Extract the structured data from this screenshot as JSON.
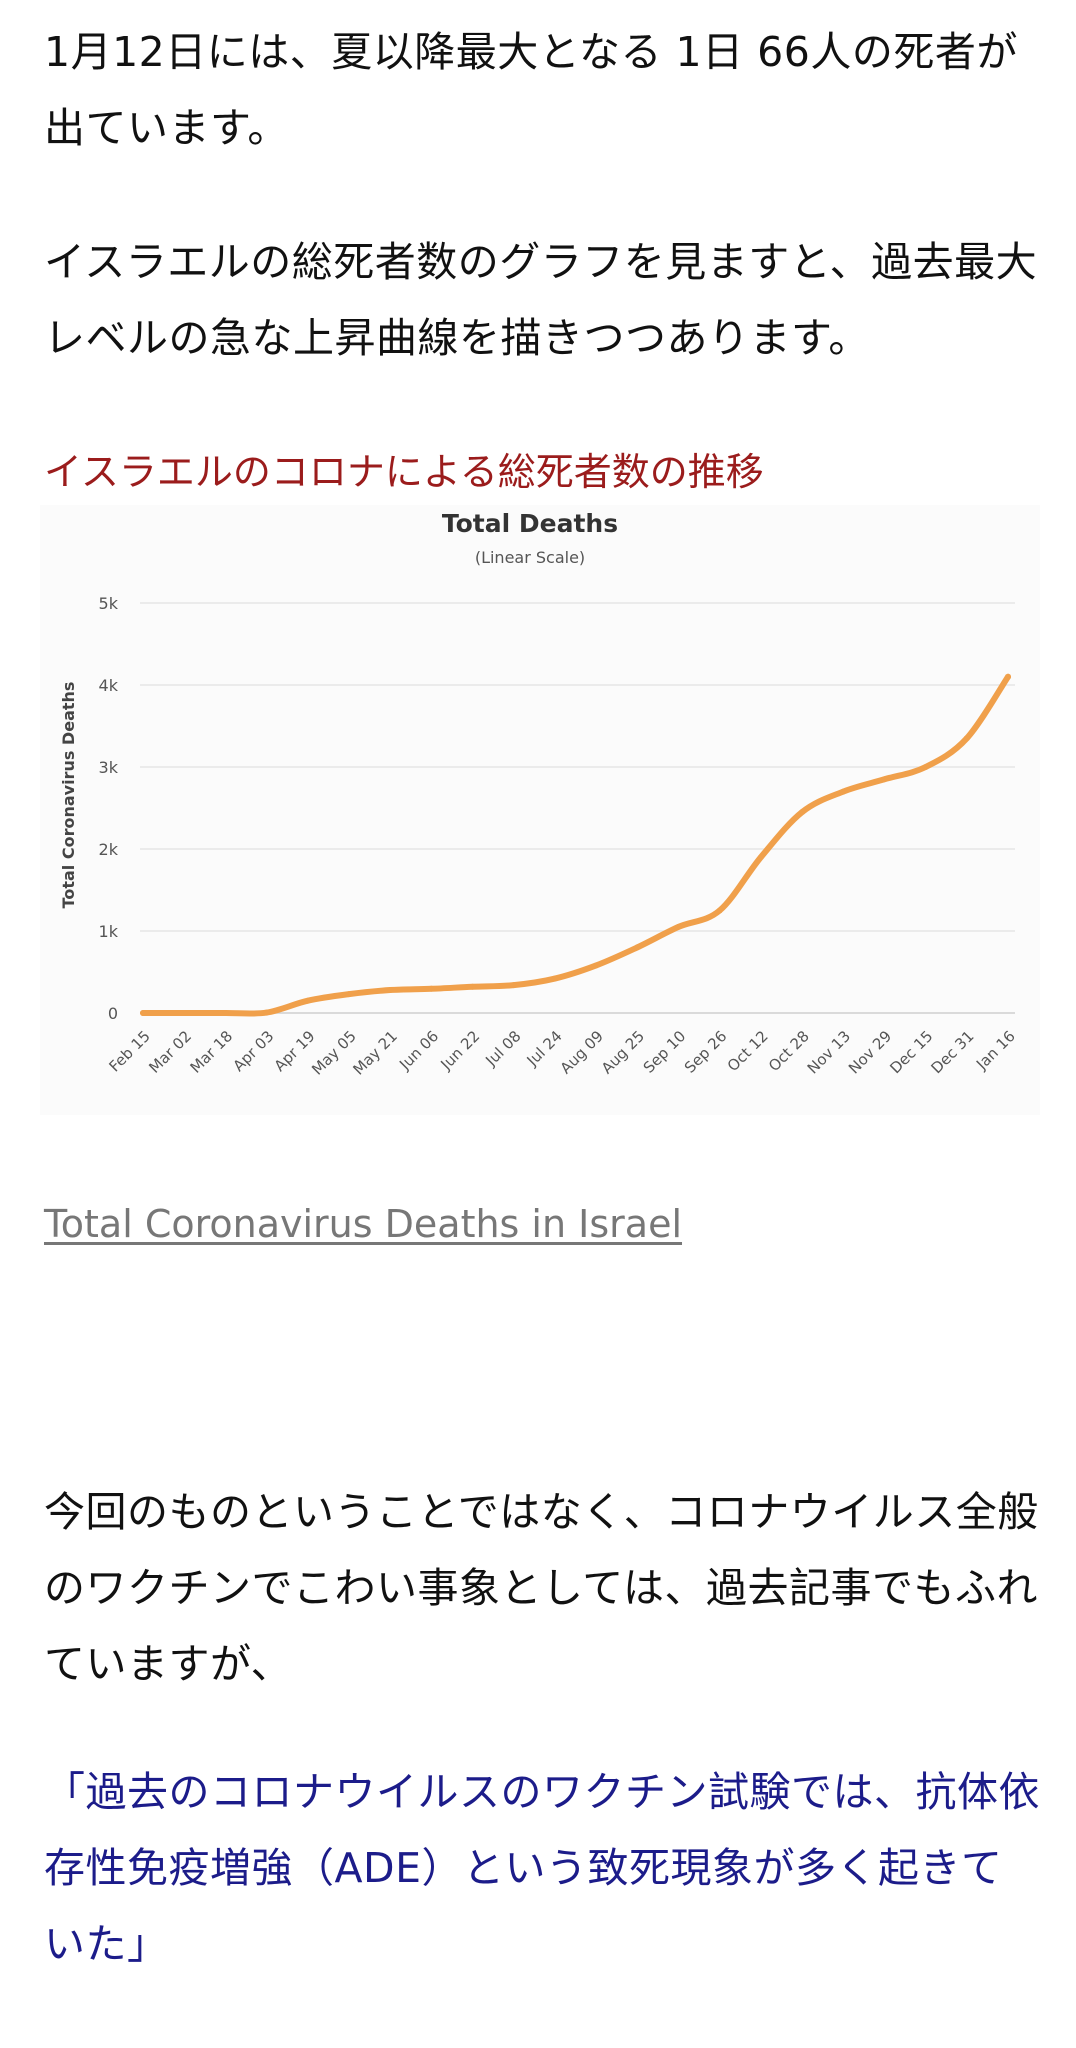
{
  "article": {
    "para1": "1月12日には、夏以降最大となる 1日 66人の死者が出ています。",
    "para2": "イスラエルの総死者数のグラフを見ますと、過去最大レベルの急な上昇曲線を描きつつあります。",
    "chart_heading": "イスラエルのコロナによる総死者数の推移",
    "source_link": "Total Coronavirus Deaths in Israel",
    "para3": "今回のものということではなく、コロナウイルス全般のワクチンでこわい事象としては、過去記事でもふれていますが、",
    "quote": "「過去のコロナウイルスのワクチン試験では、抗体依存性免疫増強（ADE）という致死現象が多く起きていた」"
  },
  "colors": {
    "text": "#111111",
    "heading": "#9b1c1c",
    "link": "#777777",
    "quote": "#1c1c8a",
    "line": "#f0a04b",
    "grid": "#e6e6e6"
  },
  "chart_data": {
    "type": "line",
    "title": "Total Deaths",
    "subtitle": "(Linear Scale)",
    "ylabel": "Total Coronavirus Deaths",
    "xlabel": "",
    "ylim": [
      0,
      5000
    ],
    "yticks": [
      0,
      1000,
      2000,
      3000,
      4000,
      5000
    ],
    "ytick_labels": [
      "0",
      "1k",
      "2k",
      "3k",
      "4k",
      "5k"
    ],
    "xtick_labels": [
      "Feb 15",
      "Mar 02",
      "Mar 18",
      "Apr 03",
      "Apr 19",
      "May 05",
      "May 21",
      "Jun 06",
      "Jun 22",
      "Jul 08",
      "Jul 24",
      "Aug 09",
      "Aug 25",
      "Sep 10",
      "Sep 26",
      "Oct 12",
      "Oct 28",
      "Nov 13",
      "Nov 29",
      "Dec 15",
      "Dec 31",
      "Jan 16"
    ],
    "grid": true,
    "series": [
      {
        "values": [
          0,
          0,
          0,
          5,
          150,
          230,
          280,
          295,
          320,
          340,
          420,
          580,
          800,
          1050,
          1250,
          1900,
          2450,
          2700,
          2850,
          3000,
          3350,
          4100
        ]
      }
    ]
  }
}
